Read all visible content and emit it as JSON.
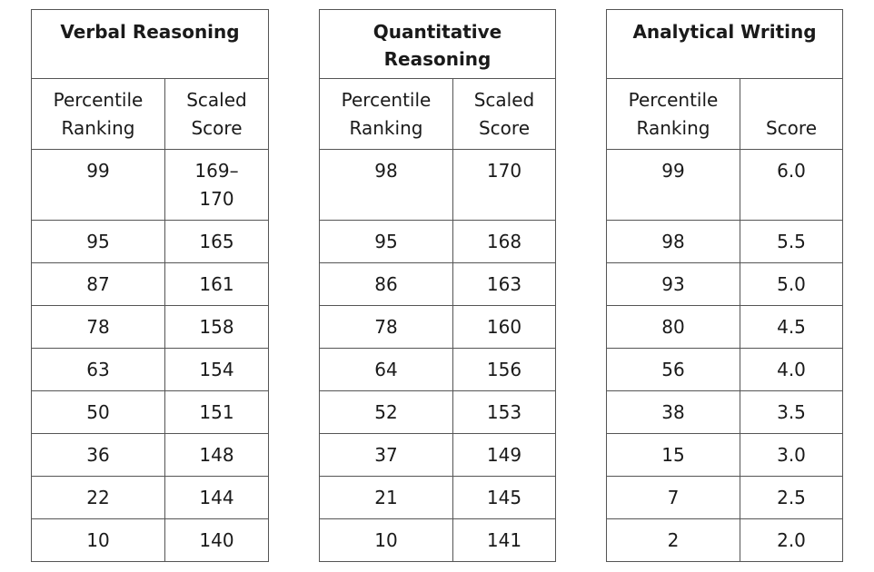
{
  "tables": [
    {
      "title": "Verbal Reasoning",
      "col1": "Percentile Ranking",
      "col2": "Scaled Score",
      "rows": [
        [
          "99",
          "169–170"
        ],
        [
          "95",
          "165"
        ],
        [
          "87",
          "161"
        ],
        [
          "78",
          "158"
        ],
        [
          "63",
          "154"
        ],
        [
          "50",
          "151"
        ],
        [
          "36",
          "148"
        ],
        [
          "22",
          "144"
        ],
        [
          "10",
          "140"
        ]
      ]
    },
    {
      "title": "Quantitative Reasoning",
      "col1": "Percentile Ranking",
      "col2": "Scaled Score",
      "rows": [
        [
          "98",
          "170"
        ],
        [
          "95",
          "168"
        ],
        [
          "86",
          "163"
        ],
        [
          "78",
          "160"
        ],
        [
          "64",
          "156"
        ],
        [
          "52",
          "153"
        ],
        [
          "37",
          "149"
        ],
        [
          "21",
          "145"
        ],
        [
          "10",
          "141"
        ]
      ]
    },
    {
      "title": "Analytical Writing",
      "col1": "Percentile Ranking",
      "col2": "Score",
      "rows": [
        [
          "99",
          "6.0"
        ],
        [
          "98",
          "5.5"
        ],
        [
          "93",
          "5.0"
        ],
        [
          "80",
          "4.5"
        ],
        [
          "56",
          "4.0"
        ],
        [
          "38",
          "3.5"
        ],
        [
          "15",
          "3.0"
        ],
        [
          "7",
          "2.5"
        ],
        [
          "2",
          "2.0"
        ]
      ]
    }
  ]
}
